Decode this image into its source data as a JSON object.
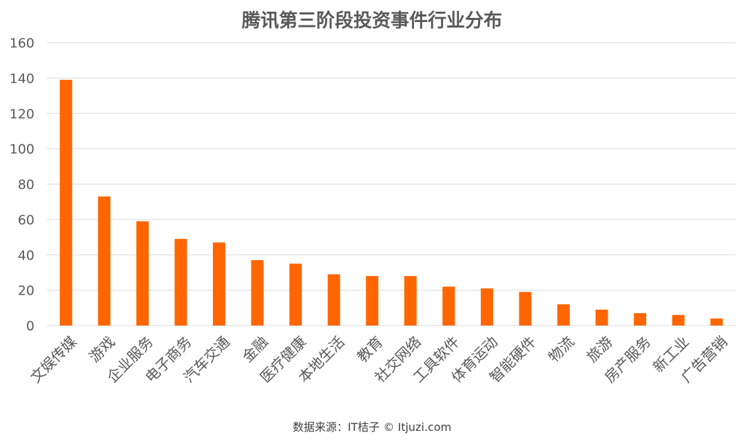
{
  "chart_data": {
    "type": "bar",
    "title": "腾讯第三阶段投资事件行业分布",
    "categories": [
      "文娱传媒",
      "游戏",
      "企业服务",
      "电子商务",
      "汽车交通",
      "金融",
      "医疗健康",
      "本地生活",
      "教育",
      "社交网络",
      "工具软件",
      "体育运动",
      "智能硬件",
      "物流",
      "旅游",
      "房产服务",
      "新工业",
      "广告营销"
    ],
    "values": [
      139,
      73,
      59,
      49,
      47,
      37,
      35,
      29,
      28,
      28,
      22,
      21,
      19,
      12,
      9,
      7,
      6,
      4
    ],
    "xlabel": "",
    "ylabel": "",
    "ylim": [
      0,
      160
    ],
    "yticks": [
      0,
      20,
      40,
      60,
      80,
      100,
      120,
      140,
      160
    ],
    "grid": true,
    "legend": "none",
    "bar_color": "#ff6600"
  },
  "source": "数据来源：IT桔子 © Itjuzi.com"
}
